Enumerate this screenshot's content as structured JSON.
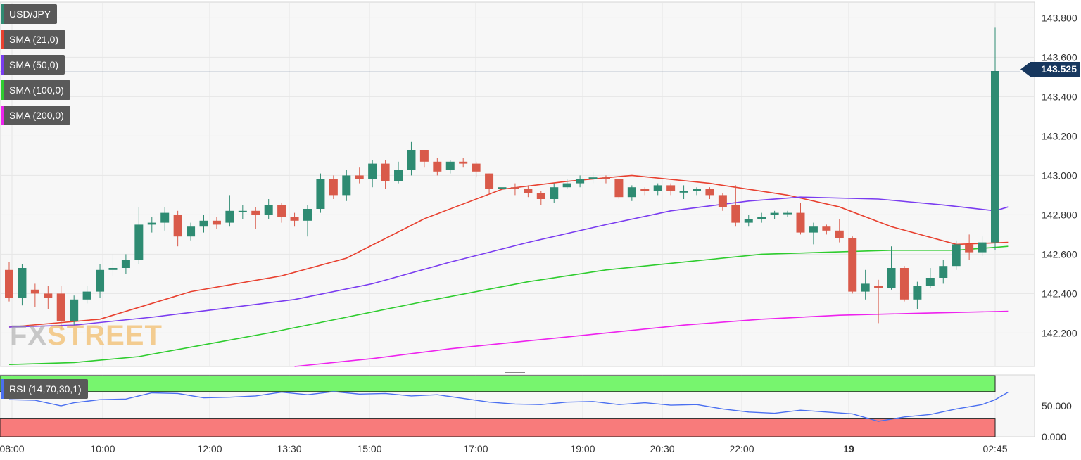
{
  "symbol": "USD/JPY",
  "indicators": [
    {
      "label": "SMA (21,0)",
      "color": "#e8402f"
    },
    {
      "label": "SMA (50,0)",
      "color": "#7a3cf0"
    },
    {
      "label": "SMA (100,0)",
      "color": "#2ecc2e"
    },
    {
      "label": "SMA (200,0)",
      "color": "#ee22ee"
    }
  ],
  "rsi": {
    "label": "RSI (14,70,30,1)",
    "axis_ticks": [
      "50.000",
      "0.000"
    ]
  },
  "watermark": {
    "part1": "FX",
    "part2": "STREET"
  },
  "last_price": "143.525",
  "chart_data": {
    "type": "candlestick",
    "y_ticks": [
      "143.800",
      "143.600",
      "143.400",
      "143.200",
      "143.000",
      "142.800",
      "142.600",
      "142.400",
      "142.200"
    ],
    "ylim": [
      142.03,
      143.88
    ],
    "x_tick_labels": [
      "08:00",
      "10:00",
      "12:00",
      "13:30",
      "15:00",
      "17:00",
      "19:00",
      "20:30",
      "22:00",
      "19",
      "02:45"
    ],
    "up_color": "#2e8b72",
    "down_color": "#d95a4a",
    "candles": [
      [
        142.52,
        142.38,
        142.56,
        142.36
      ],
      [
        142.38,
        142.53,
        142.55,
        142.34
      ],
      [
        142.42,
        142.4,
        142.45,
        142.33
      ],
      [
        142.4,
        142.38,
        142.44,
        142.32
      ],
      [
        142.4,
        142.26,
        142.44,
        142.22
      ],
      [
        142.26,
        142.37,
        142.39,
        142.24
      ],
      [
        142.37,
        142.41,
        142.44,
        142.35
      ],
      [
        142.41,
        142.52,
        142.55,
        142.38
      ],
      [
        142.52,
        142.53,
        142.6,
        142.49
      ],
      [
        142.53,
        142.57,
        142.6,
        142.5
      ],
      [
        142.57,
        142.75,
        142.84,
        142.55
      ],
      [
        142.75,
        142.76,
        142.79,
        142.71
      ],
      [
        142.76,
        142.81,
        142.84,
        142.72
      ],
      [
        142.8,
        142.69,
        142.82,
        142.64
      ],
      [
        142.69,
        142.74,
        142.76,
        142.67
      ],
      [
        142.74,
        142.77,
        142.8,
        142.71
      ],
      [
        142.77,
        142.75,
        142.79,
        142.73
      ],
      [
        142.76,
        142.82,
        142.9,
        142.74
      ],
      [
        142.82,
        142.82,
        142.85,
        142.78
      ],
      [
        142.82,
        142.8,
        142.84,
        142.73
      ],
      [
        142.8,
        142.85,
        142.88,
        142.78
      ],
      [
        142.85,
        142.79,
        142.86,
        142.76
      ],
      [
        142.79,
        142.77,
        142.81,
        142.74
      ],
      [
        142.77,
        142.83,
        142.85,
        142.69
      ],
      [
        142.83,
        142.98,
        143.01,
        142.81
      ],
      [
        142.98,
        142.9,
        143.0,
        142.88
      ],
      [
        142.9,
        143.0,
        143.03,
        142.87
      ],
      [
        143.0,
        142.98,
        143.04,
        142.96
      ],
      [
        142.98,
        143.06,
        143.08,
        142.94
      ],
      [
        143.06,
        142.97,
        143.08,
        142.93
      ],
      [
        142.97,
        143.03,
        143.07,
        142.96
      ],
      [
        143.03,
        143.13,
        143.17,
        143.0
      ],
      [
        143.13,
        143.07,
        143.13,
        143.04
      ],
      [
        143.07,
        143.02,
        143.09,
        143.0
      ],
      [
        143.03,
        143.07,
        143.08,
        143.01
      ],
      [
        143.07,
        143.06,
        143.09,
        143.04
      ],
      [
        143.06,
        143.02,
        143.07,
        142.99
      ],
      [
        143.01,
        142.93,
        143.01,
        142.91
      ],
      [
        142.93,
        142.94,
        142.97,
        142.91
      ],
      [
        142.94,
        142.93,
        142.96,
        142.9
      ],
      [
        142.93,
        142.91,
        142.95,
        142.89
      ],
      [
        142.91,
        142.88,
        142.92,
        142.85
      ],
      [
        142.88,
        142.94,
        142.96,
        142.86
      ],
      [
        142.94,
        142.96,
        142.98,
        142.93
      ],
      [
        142.96,
        142.98,
        143.0,
        142.94
      ],
      [
        142.98,
        142.99,
        143.02,
        142.96
      ],
      [
        142.99,
        142.98,
        143.0,
        142.96
      ],
      [
        142.98,
        142.89,
        142.98,
        142.88
      ],
      [
        142.89,
        142.94,
        142.95,
        142.87
      ],
      [
        142.93,
        142.92,
        142.94,
        142.9
      ],
      [
        142.92,
        142.95,
        142.96,
        142.9
      ],
      [
        142.95,
        142.92,
        142.96,
        142.9
      ],
      [
        142.92,
        142.92,
        142.95,
        142.88
      ],
      [
        142.92,
        142.93,
        142.94,
        142.9
      ],
      [
        142.93,
        142.9,
        142.94,
        142.88
      ],
      [
        142.9,
        142.84,
        142.91,
        142.82
      ],
      [
        142.85,
        142.76,
        142.95,
        142.74
      ],
      [
        142.76,
        142.78,
        142.8,
        142.74
      ],
      [
        142.78,
        142.79,
        142.81,
        142.76
      ],
      [
        142.8,
        142.81,
        142.82,
        142.78
      ],
      [
        142.81,
        142.81,
        142.82,
        142.79
      ],
      [
        142.81,
        142.71,
        142.86,
        142.7
      ],
      [
        142.71,
        142.74,
        142.76,
        142.65
      ],
      [
        142.74,
        142.72,
        142.75,
        142.7
      ],
      [
        142.72,
        142.68,
        142.78,
        142.66
      ],
      [
        142.68,
        142.41,
        142.69,
        142.4
      ],
      [
        142.41,
        142.45,
        142.52,
        142.37
      ],
      [
        142.44,
        142.43,
        142.47,
        142.25
      ],
      [
        142.43,
        142.53,
        142.64,
        142.42
      ],
      [
        142.53,
        142.37,
        142.54,
        142.36
      ],
      [
        142.37,
        142.44,
        142.46,
        142.32
      ],
      [
        142.44,
        142.48,
        142.53,
        142.43
      ],
      [
        142.48,
        142.54,
        142.57,
        142.45
      ],
      [
        142.54,
        142.65,
        142.67,
        142.52
      ],
      [
        142.65,
        142.61,
        142.7,
        142.57
      ],
      [
        142.61,
        142.66,
        142.69,
        142.59
      ],
      [
        142.66,
        143.53,
        143.75,
        142.62
      ]
    ],
    "series": [
      {
        "name": "SMA (21,0)",
        "color": "#e8402f",
        "values": [
          [
            0,
            142.23
          ],
          [
            7,
            142.27
          ],
          [
            14,
            142.41
          ],
          [
            21,
            142.49
          ],
          [
            26,
            142.58
          ],
          [
            32,
            142.78
          ],
          [
            38,
            142.93
          ],
          [
            43,
            142.97
          ],
          [
            48,
            143.0
          ],
          [
            54,
            142.96
          ],
          [
            60,
            142.9
          ],
          [
            64,
            142.84
          ],
          [
            68,
            142.74
          ],
          [
            73,
            142.65
          ],
          [
            77,
            142.66
          ]
        ]
      },
      {
        "name": "SMA (50,0)",
        "color": "#7a3cf0",
        "values": [
          [
            0,
            142.23
          ],
          [
            5,
            142.24
          ],
          [
            11,
            142.28
          ],
          [
            16,
            142.32
          ],
          [
            22,
            142.37
          ],
          [
            28,
            142.45
          ],
          [
            34,
            142.56
          ],
          [
            40,
            142.66
          ],
          [
            46,
            142.75
          ],
          [
            51,
            142.82
          ],
          [
            57,
            142.87
          ],
          [
            61,
            142.89
          ],
          [
            67,
            142.88
          ],
          [
            72,
            142.85
          ],
          [
            76,
            142.82
          ],
          [
            77,
            142.84
          ]
        ]
      },
      {
        "name": "SMA (100,0)",
        "color": "#2ecc2e",
        "values": [
          [
            0,
            142.04
          ],
          [
            5,
            142.05
          ],
          [
            10,
            142.08
          ],
          [
            15,
            142.14
          ],
          [
            20,
            142.2
          ],
          [
            26,
            142.28
          ],
          [
            32,
            142.36
          ],
          [
            40,
            142.46
          ],
          [
            46,
            142.52
          ],
          [
            52,
            142.56
          ],
          [
            58,
            142.6
          ],
          [
            63,
            142.61
          ],
          [
            68,
            142.62
          ],
          [
            73,
            142.62
          ],
          [
            77,
            142.64
          ]
        ]
      },
      {
        "name": "SMA (200,0)",
        "color": "#ee22ee",
        "values": [
          [
            22,
            142.03
          ],
          [
            28,
            142.07
          ],
          [
            34,
            142.12
          ],
          [
            40,
            142.16
          ],
          [
            46,
            142.2
          ],
          [
            52,
            142.24
          ],
          [
            58,
            142.27
          ],
          [
            64,
            142.29
          ],
          [
            70,
            142.3
          ],
          [
            77,
            142.31
          ]
        ]
      },
      {
        "name": "RSI",
        "color": "#4a6ff0",
        "values": [
          [
            0,
            60
          ],
          [
            2,
            59
          ],
          [
            4,
            50
          ],
          [
            5,
            55
          ],
          [
            7,
            60
          ],
          [
            9,
            61
          ],
          [
            11,
            71
          ],
          [
            13,
            70
          ],
          [
            15,
            63
          ],
          [
            17,
            64
          ],
          [
            19,
            66
          ],
          [
            21,
            72
          ],
          [
            23,
            68
          ],
          [
            25,
            73
          ],
          [
            27,
            69
          ],
          [
            29,
            70
          ],
          [
            31,
            66
          ],
          [
            33,
            68
          ],
          [
            35,
            62
          ],
          [
            37,
            56
          ],
          [
            39,
            53
          ],
          [
            41,
            52
          ],
          [
            43,
            56
          ],
          [
            45,
            57
          ],
          [
            47,
            52
          ],
          [
            49,
            55
          ],
          [
            51,
            51
          ],
          [
            53,
            52
          ],
          [
            55,
            45
          ],
          [
            57,
            40
          ],
          [
            59,
            38
          ],
          [
            61,
            43
          ],
          [
            63,
            40
          ],
          [
            65,
            37
          ],
          [
            67,
            25
          ],
          [
            69,
            32
          ],
          [
            71,
            36
          ],
          [
            73,
            45
          ],
          [
            75,
            52
          ],
          [
            76,
            60
          ],
          [
            77,
            72
          ]
        ]
      }
    ],
    "rsi_ylim": [
      0,
      100
    ]
  }
}
